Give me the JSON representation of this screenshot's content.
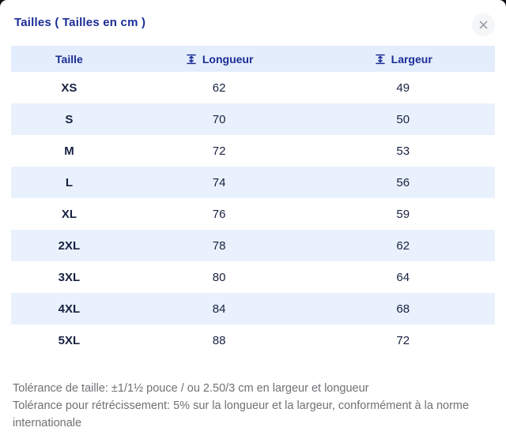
{
  "dialog": {
    "title": "Tailles ( Tailles en cm )"
  },
  "icons": {
    "close": "x-icon",
    "measure": "height-measure-icon"
  },
  "table": {
    "columns": [
      {
        "label": "Taille"
      },
      {
        "label": "Longueur",
        "icon": "height-measure-icon"
      },
      {
        "label": "Largeur",
        "icon": "height-measure-icon"
      }
    ],
    "rows": [
      {
        "taille": "XS",
        "longueur": "62",
        "largeur": "49"
      },
      {
        "taille": "S",
        "longueur": "70",
        "largeur": "50"
      },
      {
        "taille": "M",
        "longueur": "72",
        "largeur": "53"
      },
      {
        "taille": "L",
        "longueur": "74",
        "largeur": "56"
      },
      {
        "taille": "XL",
        "longueur": "76",
        "largeur": "59"
      },
      {
        "taille": "2XL",
        "longueur": "78",
        "largeur": "62"
      },
      {
        "taille": "3XL",
        "longueur": "80",
        "largeur": "64"
      },
      {
        "taille": "4XL",
        "longueur": "84",
        "largeur": "68"
      },
      {
        "taille": "5XL",
        "longueur": "88",
        "largeur": "72"
      }
    ]
  },
  "footnotes": [
    "Tolérance de taille: ±1/1½ pouce / ou 2.50/3 cm en largeur et longueur",
    "Tolérance pour rétrécissement: 5% sur la longueur et la largeur, conformément à la norme internationale"
  ],
  "colors": {
    "accent_blue": "#1c2d96",
    "data_navy": "#182241",
    "header_bg": "#e3edfb",
    "row_highlight": "#e9f1fc",
    "footnote_gray": "#707175",
    "close_bg": "#f5f6f8"
  }
}
